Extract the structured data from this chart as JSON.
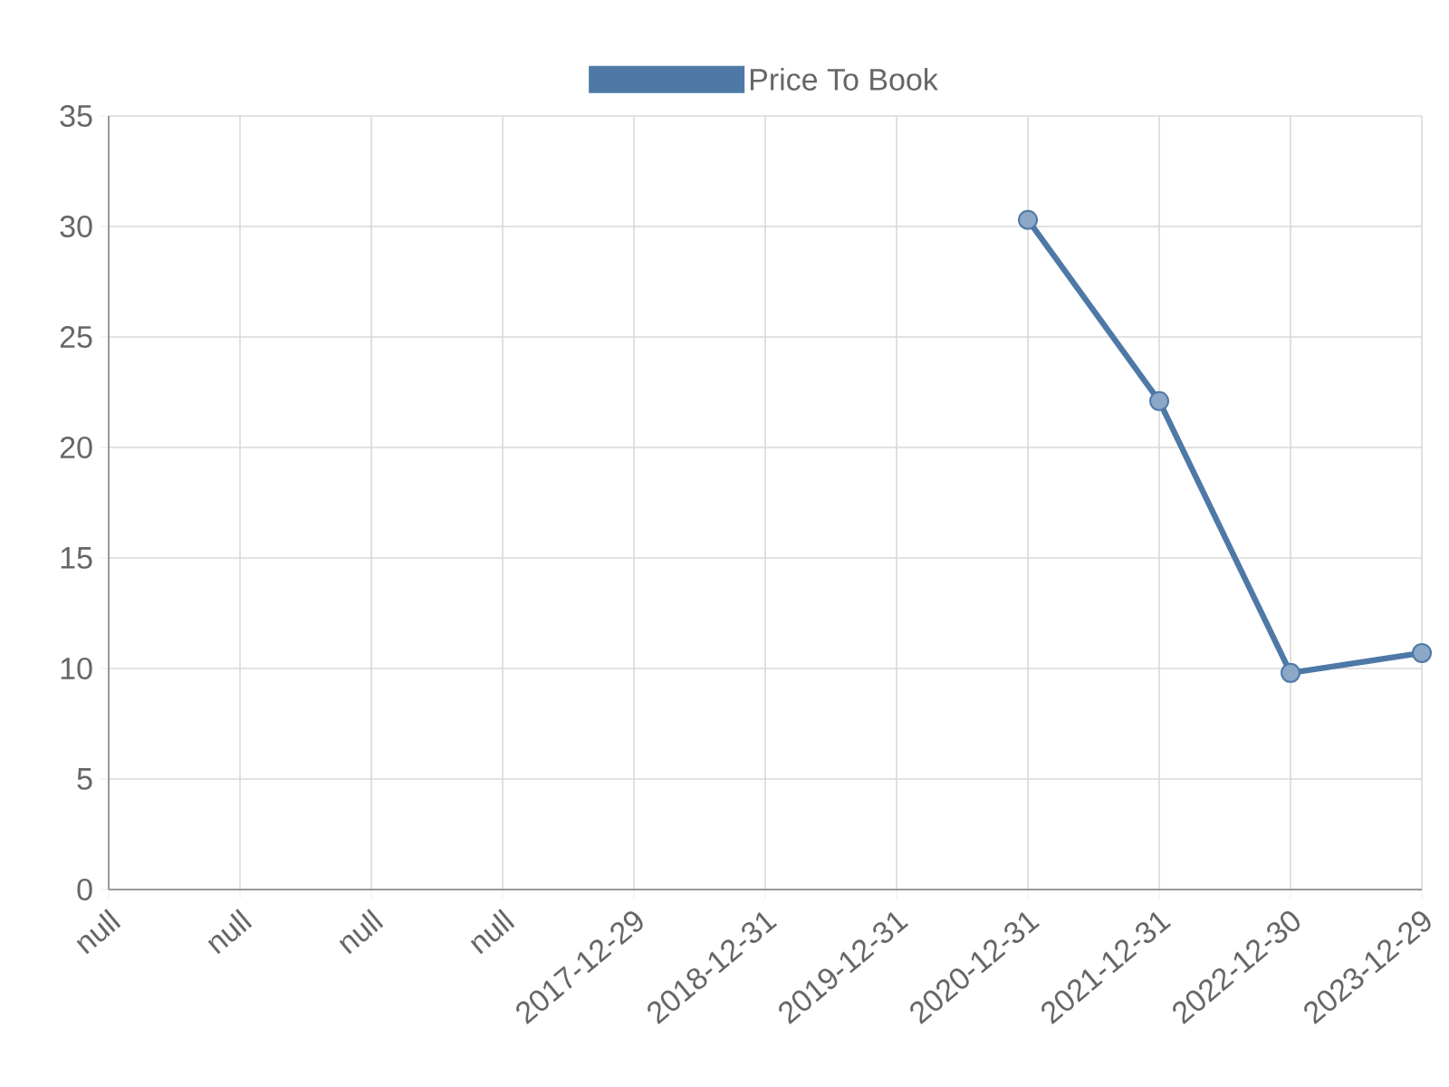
{
  "chart_data": {
    "type": "line",
    "categories": [
      "null",
      "null",
      "null",
      "null",
      "2017-12-29",
      "2018-12-31",
      "2019-12-31",
      "2020-12-31",
      "2021-12-31",
      "2022-12-30",
      "2023-12-29"
    ],
    "series": [
      {
        "name": "Price To Book",
        "color": "#4e79a7",
        "values": [
          null,
          null,
          null,
          null,
          null,
          null,
          null,
          30.3,
          22.1,
          9.8,
          10.7
        ]
      }
    ],
    "ylim": [
      0,
      35
    ],
    "yticks": [
      0,
      5,
      10,
      15,
      20,
      25,
      30,
      35
    ],
    "grid": true,
    "legend": "top",
    "marker": "circle",
    "line_style": "solid"
  }
}
